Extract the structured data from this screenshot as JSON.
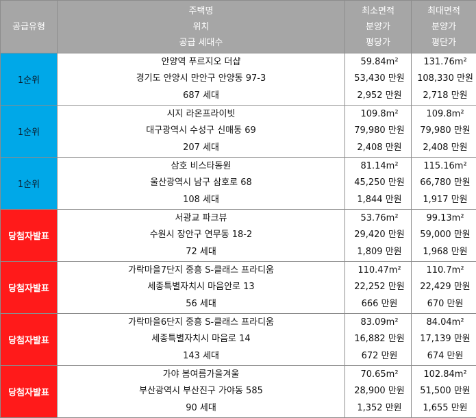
{
  "header": {
    "type": "공급유형",
    "info": [
      "주택명",
      "위치",
      "공급 세대수"
    ],
    "min": [
      "최소면적",
      "분양가",
      "평당가"
    ],
    "max": [
      "최대면적",
      "분양가",
      "평단가"
    ]
  },
  "rows": [
    {
      "type": "1순위",
      "name": "안양역 푸르지오 더샵",
      "loc": "경기도 안양시 만안구 안양동 97-3",
      "units": "687 세대",
      "min_area": "59.84m²",
      "min_price": "53,430 만원",
      "min_pp": "2,952 만원",
      "max_area": "131.76m²",
      "max_price": "108,330 만원",
      "max_pp": "2,718 만원"
    },
    {
      "type": "1순위",
      "name": "시지 라온프라이빗",
      "loc": "대구광역시 수성구 신매동 69",
      "units": "207 세대",
      "min_area": "109.8m²",
      "min_price": "79,980 만원",
      "min_pp": "2,408 만원",
      "max_area": "109.8m²",
      "max_price": "79,980 만원",
      "max_pp": "2,408 만원"
    },
    {
      "type": "1순위",
      "name": "삼호 비스타동원",
      "loc": "울산광역시 남구 삼호로 68",
      "units": "108 세대",
      "min_area": "81.14m²",
      "min_price": "45,250 만원",
      "min_pp": "1,844 만원",
      "max_area": "115.16m²",
      "max_price": "66,780 만원",
      "max_pp": "1,917 만원"
    },
    {
      "type": "당첨자발표",
      "name": "서광교 파크뷰",
      "loc": "수원시 장안구 연무동 18-2",
      "units": "72 세대",
      "min_area": "53.76m²",
      "min_price": "29,420 만원",
      "min_pp": "1,809 만원",
      "max_area": "99.13m²",
      "max_price": "59,000 만원",
      "max_pp": "1,968 만원"
    },
    {
      "type": "당첨자발표",
      "name": "가락마을7단지 중흥 S-클래스 프라디움",
      "loc": "세종특별자치시 마음안로 13",
      "units": "56 세대",
      "min_area": "110.47m²",
      "min_price": "22,252 만원",
      "min_pp": "666 만원",
      "max_area": "110.7m²",
      "max_price": "22,429 만원",
      "max_pp": "670 만원"
    },
    {
      "type": "당첨자발표",
      "name": "가락마을6단지 중흥 S-클래스 프라디움",
      "loc": "세종특별자치시 마음로 14",
      "units": "143 세대",
      "min_area": "83.09m²",
      "min_price": "16,882 만원",
      "min_pp": "672 만원",
      "max_area": "84.04m²",
      "max_price": "17,139 만원",
      "max_pp": "674 만원"
    },
    {
      "type": "당첨자발표",
      "name": "가야 봄여름가을겨울",
      "loc": "부산광역시 부산진구 가야동 585",
      "units": "90 세대",
      "min_area": "70.65m²",
      "min_price": "28,900 만원",
      "min_pp": "1,352 만원",
      "max_area": "102.84m²",
      "max_price": "51,500 만원",
      "max_pp": "1,655 만원"
    }
  ],
  "colors": {
    "header_bg": "#a6a6a6",
    "first_rank": "#00a8e8",
    "winner": "#ff1a1a"
  }
}
